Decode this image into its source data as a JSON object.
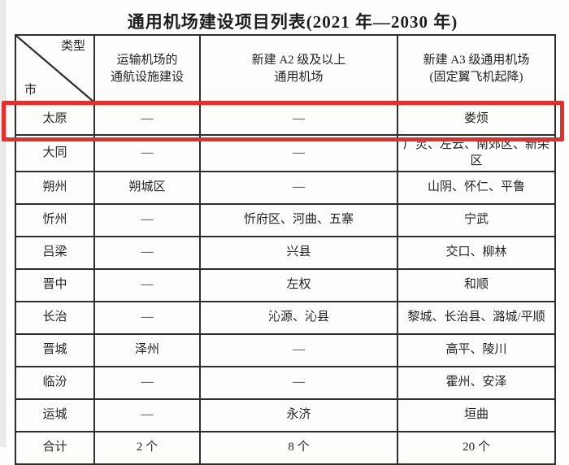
{
  "title": "通用机场建设项目列表(2021 年—2030 年)",
  "table": {
    "header": {
      "corner_top": "类型",
      "corner_bottom": "市",
      "col2": "运输机场的\n通航设施建设",
      "col3": "新建 A2 级及以上\n通用机场",
      "col4": "新建 A3 级通用机场\n(固定翼飞机起降)"
    },
    "rows": [
      {
        "city": "太原",
        "transport_airport_facility": "—",
        "a2_airport": "—",
        "a3_airport": "娄烦",
        "highlighted": false
      },
      {
        "city": "大同",
        "transport_airport_facility": "—",
        "a2_airport": "—",
        "a3_airport": "广灵、左云、南郊区、新荣区",
        "highlighted": true
      },
      {
        "city": "朔州",
        "transport_airport_facility": "朔城区",
        "a2_airport": "—",
        "a3_airport": "山阴、怀仁、平鲁",
        "highlighted": false
      },
      {
        "city": "忻州",
        "transport_airport_facility": "—",
        "a2_airport": "忻府区、河曲、五寨",
        "a3_airport": "宁武",
        "highlighted": false
      },
      {
        "city": "吕梁",
        "transport_airport_facility": "—",
        "a2_airport": "兴县",
        "a3_airport": "交口、柳林",
        "highlighted": false
      },
      {
        "city": "晋中",
        "transport_airport_facility": "—",
        "a2_airport": "左权",
        "a3_airport": "和顺",
        "highlighted": false
      },
      {
        "city": "长治",
        "transport_airport_facility": "—",
        "a2_airport": "沁源、沁县",
        "a3_airport": "黎城、长治县、潞城/平顺",
        "highlighted": false
      },
      {
        "city": "晋城",
        "transport_airport_facility": "泽州",
        "a2_airport": "—",
        "a3_airport": "高平、陵川",
        "highlighted": false
      },
      {
        "city": "临汾",
        "transport_airport_facility": "—",
        "a2_airport": "—",
        "a3_airport": "霍州、安泽",
        "highlighted": false
      },
      {
        "city": "运城",
        "transport_airport_facility": "—",
        "a2_airport": "永济",
        "a3_airport": "垣曲",
        "highlighted": false
      },
      {
        "city": "合计",
        "transport_airport_facility": "2 个",
        "a2_airport": "8 个",
        "a3_airport": "20 个",
        "highlighted": false
      }
    ]
  },
  "highlight_color": "#e62f2c"
}
